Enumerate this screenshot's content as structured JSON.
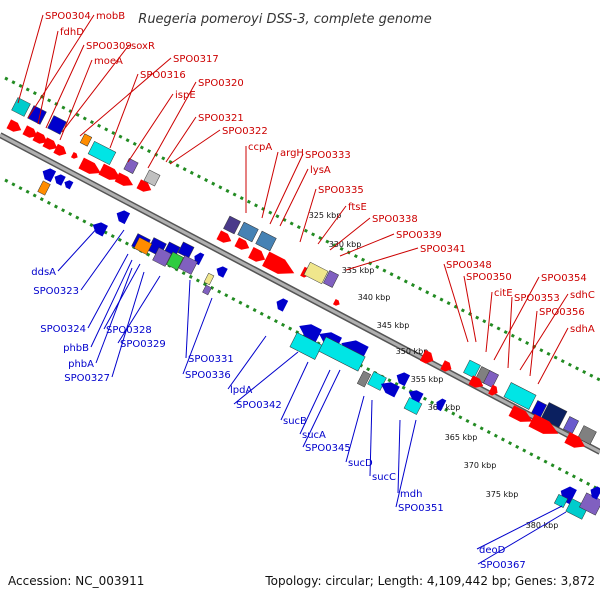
{
  "title": "Ruegeria pomeroyi DSS-3, complete genome",
  "footer": {
    "accession": "Accession: NC_003911",
    "topology": "Topology: circular; Length: 4,109,442 bp; Genes: 3,872"
  },
  "colors": {
    "forward_label": "#cc0000",
    "reverse_label": "#0000cc",
    "backbone": "#999999",
    "dots": "#228b22"
  },
  "ticks": [
    "325 kbp",
    "330 kbp",
    "335 kbp",
    "340 kbp",
    "345 kbp",
    "350 kbp",
    "355 kbp",
    "360 kbp",
    "365 kbp",
    "370 kbp",
    "375 kbp",
    "380 kbp"
  ],
  "forward_labels": [
    "SPO0304",
    "mobB",
    "fdhD",
    "SPO0309",
    "soxR",
    "moeA",
    "SPO0317",
    "SPO0316",
    "ispE",
    "SPO0320",
    "SPO0321",
    "SPO0322",
    "ccpA",
    "argH",
    "SPO0333",
    "lysA",
    "SPO0335",
    "ftsE",
    "SPO0338",
    "SPO0339",
    "SPO0341",
    "SPO0348",
    "SPO0350",
    "citE",
    "SPO0354",
    "SPO0353",
    "sdhC",
    "SPO0356",
    "sdhA"
  ],
  "reverse_labels": [
    "ddsA",
    "SPO0323",
    "SPO0324",
    "SPO0328",
    "phbB",
    "phbA",
    "SPO0327",
    "SPO0329",
    "SPO0331",
    "SPO0336",
    "lpdA",
    "SPO0342",
    "sucB",
    "sucA",
    "SPO0345",
    "sucD",
    "sucC",
    "mdh",
    "SPO0351",
    "deoD",
    "SPO0367"
  ]
}
